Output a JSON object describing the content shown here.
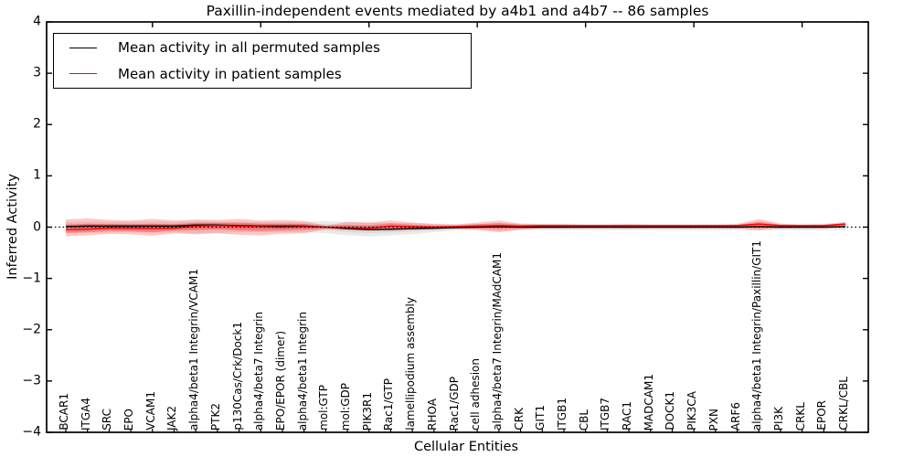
{
  "chart_data": {
    "type": "line",
    "title": "Paxillin-independent events mediated by a4b1 and a4b7 -- 86 samples",
    "xlabel": "Cellular Entities",
    "ylabel": "Inferred Activity",
    "ylim": [
      -4,
      4
    ],
    "ytick_values": [
      4,
      3,
      2,
      1,
      0,
      -1,
      -2,
      -3,
      -4
    ],
    "ytick_labels": [
      "4",
      "3",
      "2",
      "1",
      "0",
      "−1",
      "−2",
      "−3",
      "−4"
    ],
    "grid": false,
    "zero_line": {
      "style": "dotted",
      "color": "#000000",
      "y": 0
    },
    "legend_position": "upper left",
    "categories": [
      "BCAR1",
      "ITGA4",
      "SRC",
      "EPO",
      "VCAM1",
      "JAK2",
      "alpha4/beta1 Integrin/VCAM1",
      "PTK2",
      "p130Cas/Crk/Dock1",
      "alpha4/beta7 Integrin",
      "EPO/EPOR (dimer)",
      "alpha4/beta1 Integrin",
      "mol:GTP",
      "mol:GDP",
      "PIK3R1",
      "Rac1/GTP",
      "lamellipodium assembly",
      "RHOA",
      "Rac1/GDP",
      "cell adhesion",
      "alpha4/beta7 Integrin/MAdCAM1",
      "CRK",
      "GIT1",
      "ITGB1",
      "CBL",
      "ITGB7",
      "RAC1",
      "MADCAM1",
      "DOCK1",
      "PIK3CA",
      "PXN",
      "ARF6",
      "alpha4/beta1 Integrin/Paxillin/GIT1",
      "PI3K",
      "CRKL",
      "EPOR",
      "CRKL/CBL"
    ],
    "series": [
      {
        "name": "Mean activity in all permuted samples",
        "color": "#000000",
        "band_color": "#aaaaaa",
        "mean": [
          0.01,
          0.02,
          0.02,
          0.02,
          0.02,
          0.02,
          0.04,
          0.04,
          0.03,
          0.02,
          0.02,
          0.02,
          0.0,
          -0.03,
          -0.05,
          -0.04,
          -0.03,
          -0.02,
          -0.01,
          0.0,
          0.01,
          0.0,
          0.0,
          0.0,
          0.0,
          0.0,
          0.0,
          0.0,
          0.0,
          0.0,
          0.0,
          0.0,
          0.01,
          0.0,
          0.0,
          0.0,
          0.01
        ],
        "upper": [
          0.1,
          0.11,
          0.1,
          0.1,
          0.11,
          0.1,
          0.12,
          0.11,
          0.1,
          0.1,
          0.1,
          0.1,
          0.12,
          0.1,
          0.09,
          0.08,
          0.08,
          0.07,
          0.06,
          0.06,
          0.08,
          0.06,
          0.05,
          0.05,
          0.05,
          0.05,
          0.05,
          0.05,
          0.05,
          0.05,
          0.05,
          0.05,
          0.06,
          0.05,
          0.05,
          0.05,
          0.06
        ],
        "lower": [
          -0.1,
          -0.11,
          -0.1,
          -0.1,
          -0.11,
          -0.1,
          -0.12,
          -0.11,
          -0.1,
          -0.1,
          -0.1,
          -0.1,
          -0.12,
          -0.16,
          -0.18,
          -0.16,
          -0.14,
          -0.1,
          -0.07,
          -0.06,
          -0.08,
          -0.06,
          -0.06,
          -0.06,
          -0.06,
          -0.06,
          -0.06,
          -0.06,
          -0.06,
          -0.06,
          -0.06,
          -0.06,
          -0.07,
          -0.06,
          -0.06,
          -0.06,
          -0.06
        ]
      },
      {
        "name": "Mean activity in patient samples",
        "color": "#ff0000",
        "band_color": "#ff0000",
        "mean": [
          -0.05,
          -0.04,
          -0.02,
          -0.02,
          -0.03,
          -0.02,
          0.02,
          0.03,
          0.02,
          0.01,
          0.0,
          0.01,
          0.0,
          -0.01,
          -0.02,
          0.02,
          0.01,
          0.0,
          0.01,
          0.02,
          0.03,
          0.02,
          0.03,
          0.03,
          0.03,
          0.03,
          0.03,
          0.03,
          0.03,
          0.03,
          0.03,
          0.03,
          0.06,
          0.03,
          0.03,
          0.03,
          0.06
        ],
        "upper": [
          0.15,
          0.17,
          0.14,
          0.13,
          0.16,
          0.13,
          0.15,
          0.14,
          0.16,
          0.13,
          0.14,
          0.12,
          0.03,
          0.1,
          0.09,
          0.13,
          0.09,
          0.06,
          0.05,
          0.09,
          0.13,
          0.07,
          0.06,
          0.06,
          0.05,
          0.05,
          0.06,
          0.05,
          0.05,
          0.05,
          0.05,
          0.06,
          0.16,
          0.07,
          0.05,
          0.06,
          0.1
        ],
        "lower": [
          -0.18,
          -0.16,
          -0.13,
          -0.14,
          -0.17,
          -0.12,
          -0.14,
          -0.12,
          -0.15,
          -0.16,
          -0.13,
          -0.12,
          -0.04,
          -0.05,
          -0.06,
          -0.06,
          -0.05,
          -0.04,
          -0.03,
          -0.05,
          -0.1,
          -0.05,
          -0.02,
          -0.02,
          -0.01,
          -0.01,
          -0.02,
          -0.01,
          -0.01,
          -0.01,
          -0.01,
          -0.02,
          -0.06,
          -0.02,
          -0.01,
          -0.01,
          0.0
        ]
      }
    ],
    "legend": {
      "entries": [
        "Mean activity in all permuted samples",
        "Mean activity in patient samples"
      ],
      "colors": [
        "#000000",
        "#ff0000"
      ]
    }
  }
}
